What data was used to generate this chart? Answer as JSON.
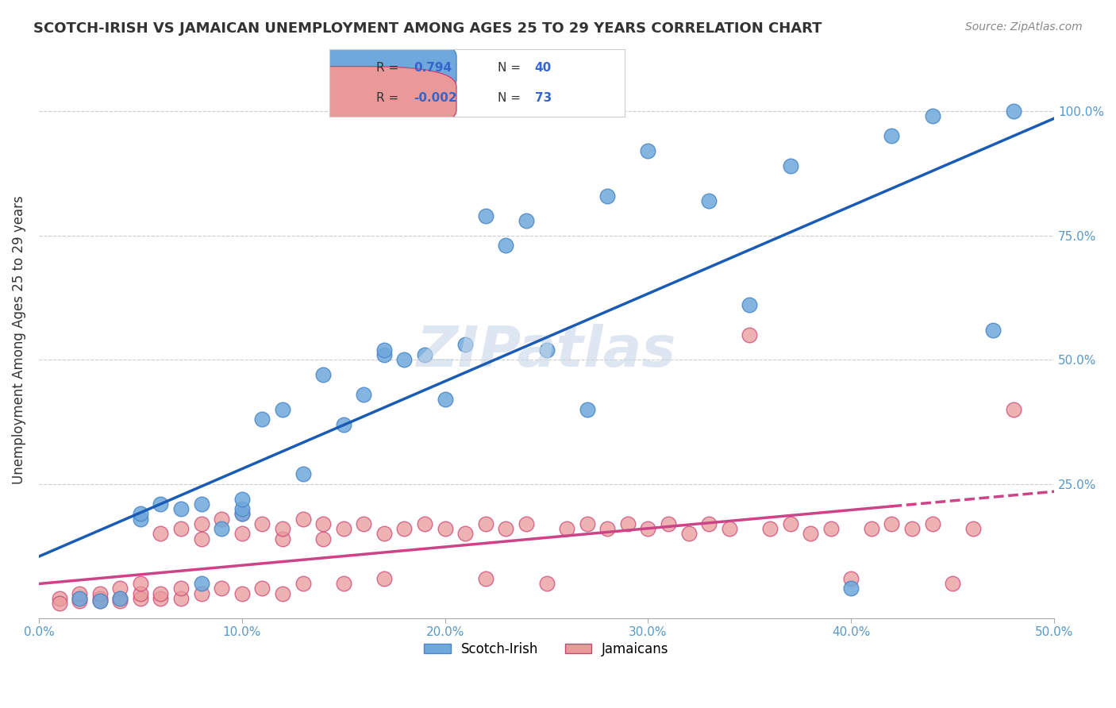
{
  "title": "SCOTCH-IRISH VS JAMAICAN UNEMPLOYMENT AMONG AGES 25 TO 29 YEARS CORRELATION CHART",
  "source": "Source: ZipAtlas.com",
  "ylabel": "Unemployment Among Ages 25 to 29 years",
  "yticks": [
    0.0,
    0.25,
    0.5,
    0.75,
    1.0
  ],
  "ytick_labels": [
    "",
    "25.0%",
    "50.0%",
    "75.0%",
    "100.0%"
  ],
  "legend_blue_r": "0.794",
  "legend_blue_n": "40",
  "legend_pink_r": "-0.002",
  "legend_pink_n": "73",
  "legend_label_blue": "Scotch-Irish",
  "legend_label_pink": "Jamaicans",
  "xmin": 0.0,
  "xmax": 0.5,
  "ymin": -0.02,
  "ymax": 1.1,
  "blue_color": "#6fa8dc",
  "blue_edge": "#4a86c8",
  "pink_color": "#ea9999",
  "pink_edge": "#cc4477",
  "blue_line_color": "#1a5cb5",
  "pink_line_color": "#cc4488",
  "watermark_color": "#c8d8e8",
  "blue_scatter_x": [
    0.02,
    0.03,
    0.04,
    0.05,
    0.05,
    0.06,
    0.07,
    0.08,
    0.08,
    0.09,
    0.1,
    0.1,
    0.1,
    0.11,
    0.12,
    0.13,
    0.14,
    0.15,
    0.16,
    0.17,
    0.17,
    0.18,
    0.19,
    0.2,
    0.21,
    0.22,
    0.23,
    0.24,
    0.25,
    0.27,
    0.28,
    0.3,
    0.33,
    0.35,
    0.37,
    0.4,
    0.42,
    0.44,
    0.47,
    0.48
  ],
  "blue_scatter_y": [
    0.02,
    0.015,
    0.02,
    0.18,
    0.19,
    0.21,
    0.2,
    0.21,
    0.05,
    0.16,
    0.19,
    0.2,
    0.22,
    0.38,
    0.4,
    0.27,
    0.47,
    0.37,
    0.43,
    0.51,
    0.52,
    0.5,
    0.51,
    0.42,
    0.53,
    0.79,
    0.73,
    0.78,
    0.52,
    0.4,
    0.83,
    0.92,
    0.82,
    0.61,
    0.89,
    0.04,
    0.95,
    0.99,
    0.56,
    1.0
  ],
  "pink_scatter_x": [
    0.01,
    0.01,
    0.02,
    0.02,
    0.02,
    0.03,
    0.03,
    0.03,
    0.04,
    0.04,
    0.04,
    0.05,
    0.05,
    0.05,
    0.06,
    0.06,
    0.06,
    0.07,
    0.07,
    0.07,
    0.08,
    0.08,
    0.08,
    0.09,
    0.09,
    0.1,
    0.1,
    0.1,
    0.11,
    0.11,
    0.12,
    0.12,
    0.12,
    0.13,
    0.13,
    0.14,
    0.14,
    0.15,
    0.15,
    0.16,
    0.17,
    0.17,
    0.18,
    0.19,
    0.2,
    0.21,
    0.22,
    0.22,
    0.23,
    0.24,
    0.25,
    0.26,
    0.27,
    0.28,
    0.29,
    0.3,
    0.31,
    0.32,
    0.33,
    0.34,
    0.35,
    0.36,
    0.37,
    0.38,
    0.39,
    0.4,
    0.41,
    0.42,
    0.43,
    0.44,
    0.45,
    0.46,
    0.48
  ],
  "pink_scatter_y": [
    0.02,
    0.01,
    0.02,
    0.015,
    0.03,
    0.02,
    0.015,
    0.03,
    0.02,
    0.015,
    0.04,
    0.02,
    0.03,
    0.05,
    0.02,
    0.03,
    0.15,
    0.02,
    0.04,
    0.16,
    0.03,
    0.14,
    0.17,
    0.04,
    0.18,
    0.03,
    0.15,
    0.19,
    0.04,
    0.17,
    0.03,
    0.14,
    0.16,
    0.05,
    0.18,
    0.14,
    0.17,
    0.05,
    0.16,
    0.17,
    0.15,
    0.06,
    0.16,
    0.17,
    0.16,
    0.15,
    0.06,
    0.17,
    0.16,
    0.17,
    0.05,
    0.16,
    0.17,
    0.16,
    0.17,
    0.16,
    0.17,
    0.15,
    0.17,
    0.16,
    0.55,
    0.16,
    0.17,
    0.15,
    0.16,
    0.06,
    0.16,
    0.17,
    0.16,
    0.17,
    0.05,
    0.16,
    0.4
  ]
}
